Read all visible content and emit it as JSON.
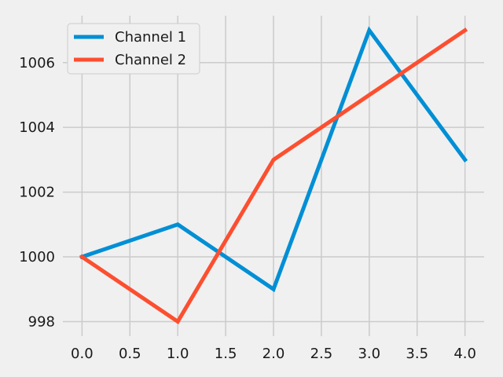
{
  "chart_data": {
    "type": "line",
    "title": "",
    "xlabel": "",
    "ylabel": "",
    "x": [
      0,
      1,
      2,
      3,
      4
    ],
    "xlim": [
      -0.2,
      4.2
    ],
    "ylim": [
      997.55,
      1007.45
    ],
    "x_ticks": [
      0.0,
      0.5,
      1.0,
      1.5,
      2.0,
      2.5,
      3.0,
      3.5,
      4.0
    ],
    "x_tick_labels": [
      "0.0",
      "0.5",
      "1.0",
      "1.5",
      "2.0",
      "2.5",
      "3.0",
      "3.5",
      "4.0"
    ],
    "y_ticks": [
      998,
      1000,
      1002,
      1004,
      1006
    ],
    "y_tick_labels": [
      "998",
      "1000",
      "1002",
      "1004",
      "1006"
    ],
    "grid": true,
    "legend_position": "top-left",
    "series": [
      {
        "name": "Channel 1",
        "color": "#008fd5",
        "values": [
          1000,
          1001,
          999,
          1007,
          1003
        ]
      },
      {
        "name": "Channel 2",
        "color": "#fc4f30",
        "values": [
          1000,
          998,
          1003,
          1005,
          1007
        ]
      }
    ]
  }
}
